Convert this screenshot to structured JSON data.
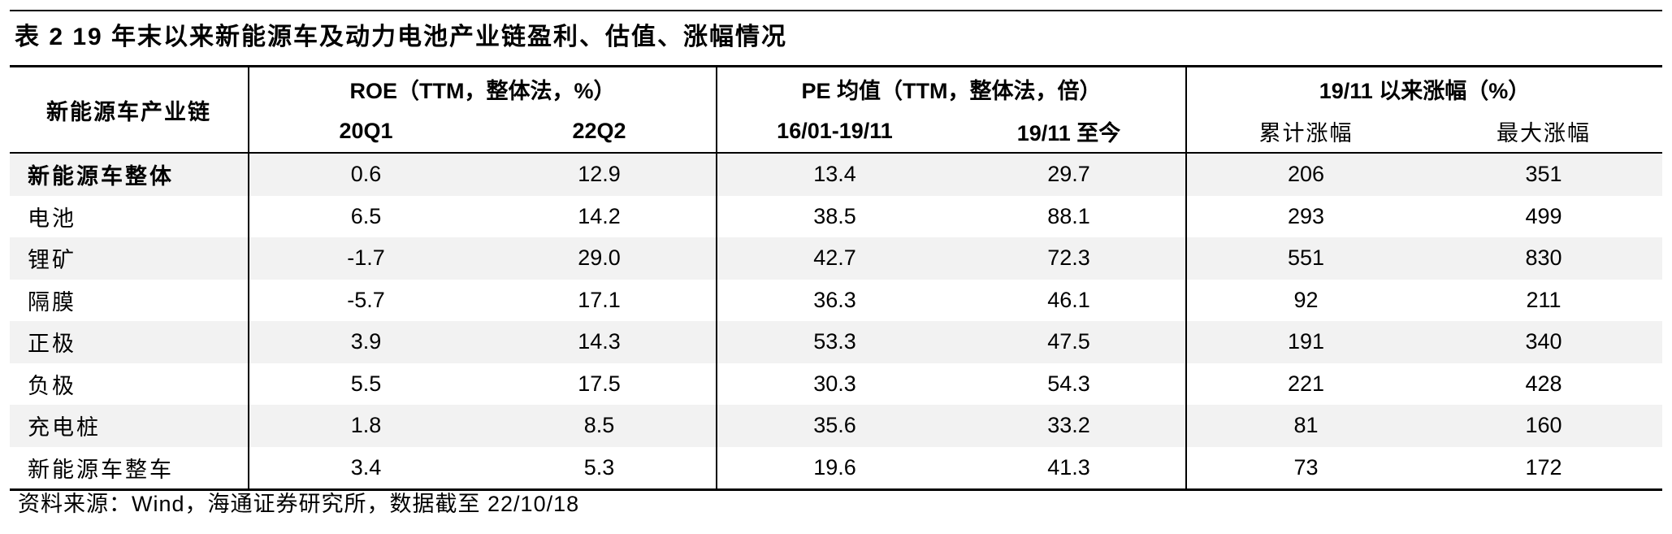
{
  "title": "表 2  19 年末以来新能源车及动力电池产业链盈利、估值、涨幅情况",
  "header": {
    "chain_label": "新能源车产业链",
    "roe_group": "ROE（TTM，整体法，%）",
    "pe_group": "PE 均值（TTM，整体法，倍）",
    "gain_group": "19/11 以来涨幅（%）",
    "roe_sub": [
      "20Q1",
      "22Q2"
    ],
    "pe_sub": [
      "16/01-19/11",
      "19/11 至今"
    ],
    "gain_sub": [
      "累计涨幅",
      "最大涨幅"
    ]
  },
  "rows": [
    {
      "name": "新能源车整体",
      "bold": true,
      "values": [
        "0.6",
        "12.9",
        "13.4",
        "29.7",
        "206",
        "351"
      ]
    },
    {
      "name": "电池",
      "bold": false,
      "values": [
        "6.5",
        "14.2",
        "38.5",
        "88.1",
        "293",
        "499"
      ]
    },
    {
      "name": "锂矿",
      "bold": false,
      "values": [
        "-1.7",
        "29.0",
        "42.7",
        "72.3",
        "551",
        "830"
      ]
    },
    {
      "name": "隔膜",
      "bold": false,
      "values": [
        "-5.7",
        "17.1",
        "36.3",
        "46.1",
        "92",
        "211"
      ]
    },
    {
      "name": "正极",
      "bold": false,
      "values": [
        "3.9",
        "14.3",
        "53.3",
        "47.5",
        "191",
        "340"
      ]
    },
    {
      "name": "负极",
      "bold": false,
      "values": [
        "5.5",
        "17.5",
        "30.3",
        "54.3",
        "221",
        "428"
      ]
    },
    {
      "name": "充电桩",
      "bold": false,
      "values": [
        "1.8",
        "8.5",
        "35.6",
        "33.2",
        "81",
        "160"
      ]
    },
    {
      "name": "新能源车整车",
      "bold": false,
      "values": [
        "3.4",
        "5.3",
        "19.6",
        "41.3",
        "73",
        "172"
      ]
    }
  ],
  "source": "资料来源：Wind，海通证券研究所，数据截至 22/10/18"
}
